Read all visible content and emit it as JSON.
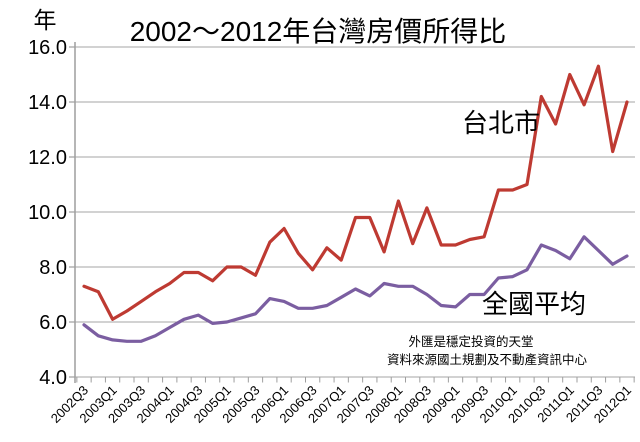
{
  "title": "2002～2012年台灣房價所得比",
  "y_unit_label": "年",
  "annotations": {
    "taipei_label": "台北市",
    "national_label": "全國平均"
  },
  "watermark": {
    "line1": "外匯是穩定投資的天堂",
    "line2": "資料來源國土規劃及不動產資訊中心"
  },
  "colors": {
    "taipei": "#be3a32",
    "national": "#7b5ea1",
    "grid": "#a6a6a6",
    "axis": "#9e9e9e",
    "watermark": "#c8c8c8",
    "text": "#000000"
  },
  "chart_data": {
    "type": "line",
    "x": [
      "2002Q3",
      "2002Q4",
      "2003Q1",
      "2003Q2",
      "2003Q3",
      "2003Q4",
      "2004Q1",
      "2004Q2",
      "2004Q3",
      "2004Q4",
      "2005Q1",
      "2005Q2",
      "2005Q3",
      "2005Q4",
      "2006Q1",
      "2006Q2",
      "2006Q3",
      "2006Q4",
      "2007Q1",
      "2007Q2",
      "2007Q3",
      "2007Q4",
      "2008Q1",
      "2008Q2",
      "2008Q3",
      "2008Q4",
      "2009Q1",
      "2009Q2",
      "2009Q3",
      "2009Q4",
      "2010Q1",
      "2010Q2",
      "2010Q3",
      "2010Q4",
      "2011Q1",
      "2011Q2",
      "2011Q3",
      "2011Q4",
      "2012Q1"
    ],
    "x_tick_label_step": 2,
    "series": [
      {
        "name": "台北市",
        "color_key": "taipei",
        "values": [
          7.3,
          7.1,
          6.1,
          6.4,
          6.75,
          7.1,
          7.4,
          7.8,
          7.8,
          7.5,
          8.0,
          8.0,
          7.7,
          8.9,
          9.4,
          8.5,
          7.9,
          8.7,
          8.25,
          9.8,
          9.8,
          8.55,
          10.4,
          8.85,
          10.15,
          8.8,
          8.8,
          9.0,
          9.1,
          10.8,
          10.8,
          11.0,
          14.2,
          13.2,
          15.0,
          13.9,
          15.3,
          12.2,
          14.0
        ]
      },
      {
        "name": "全國平均",
        "color_key": "national",
        "values": [
          5.9,
          5.5,
          5.35,
          5.3,
          5.3,
          5.5,
          5.8,
          6.1,
          6.25,
          5.95,
          6.0,
          6.15,
          6.3,
          6.85,
          6.75,
          6.5,
          6.5,
          6.6,
          6.9,
          7.2,
          6.95,
          7.4,
          7.3,
          7.3,
          7.0,
          6.6,
          6.55,
          7.0,
          7.0,
          7.6,
          7.65,
          7.9,
          8.8,
          8.6,
          8.3,
          9.1,
          8.6,
          8.1,
          8.4
        ]
      }
    ],
    "xlabel": "",
    "ylabel": "年",
    "ylim": [
      4.0,
      16.0
    ],
    "y_tick_step": 2.0,
    "y_tick_format": "one_decimal",
    "grid": "horizontal",
    "legend": "inline-labels"
  }
}
